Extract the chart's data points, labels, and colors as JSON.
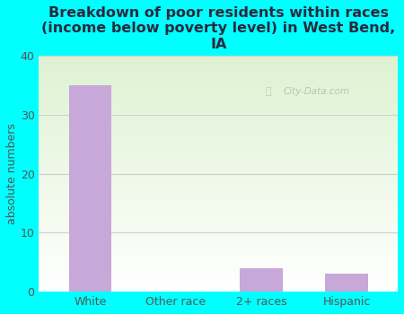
{
  "title": "Breakdown of poor residents within races\n(income below poverty level) in West Bend,\nIA",
  "categories": [
    "White",
    "Other race",
    "2+ races",
    "Hispanic"
  ],
  "values": [
    35,
    0,
    4,
    3
  ],
  "bar_color": "#c8a8d8",
  "ylabel": "absolute numbers",
  "ylim": [
    0,
    40
  ],
  "yticks": [
    0,
    10,
    20,
    30,
    40
  ],
  "bg_color": "#00ffff",
  "plot_bg_color_topleft": "#d8edd8",
  "plot_bg_color_topright": "#e8f5d0",
  "plot_bg_color_bottom": "#ffffff",
  "title_color": "#2a2a3e",
  "axis_color": "#555555",
  "watermark": "City-Data.com",
  "grid_color": "#cccccc",
  "title_fontsize": 11.5,
  "ylabel_fontsize": 9,
  "tick_fontsize": 9
}
